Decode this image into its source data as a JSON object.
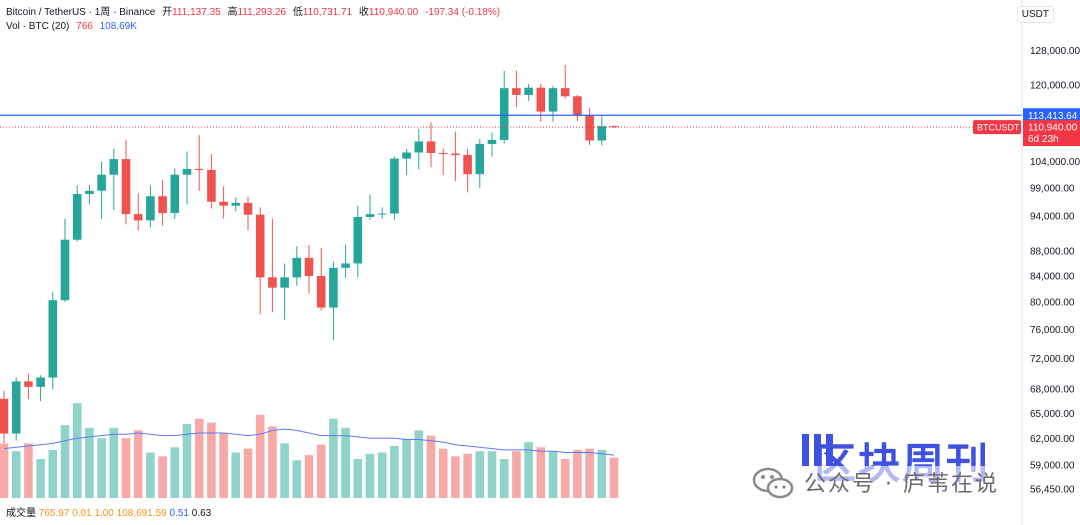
{
  "header": {
    "symbol": "Bitcoin / TetherUS · 1周 · Binance",
    "open_label": "开",
    "open": "111,137.35",
    "high_label": "高",
    "high": "111,293.26",
    "low_label": "低",
    "low": "110,731.71",
    "close_label": "收",
    "close": "110,940.00",
    "change": "-197.34 (-0.18%)",
    "vol_label": "Vol · BTC (20)",
    "vol_value": "766",
    "vol_ma": "108.69K"
  },
  "currency": "USDT",
  "bottom": {
    "label": "成交量",
    "v1": "765.97",
    "v2": "0.01",
    "v3": "1.00",
    "v4": "108,691.59",
    "v5": "0.51",
    "v6": "0.63"
  },
  "watermark": {
    "title": "区块周刊",
    "subtitle": "公众号 · 庐苇在说"
  },
  "colors": {
    "up": "#26a69a",
    "down": "#ef5350",
    "up_vol": "#8fd3cb",
    "down_vol": "#f7a9a7",
    "price_line": "#2962ff",
    "last_label": "#f23645",
    "ma": "#5b7cfa"
  },
  "chart_data": {
    "type": "candlestick",
    "scale": "log",
    "ylim": [
      55500,
      136000
    ],
    "y_ticks": [
      {
        "v": 128000,
        "label": "128,000.00"
      },
      {
        "v": 120000,
        "label": "120,000.00"
      },
      {
        "v": 104000,
        "label": "104,000.00"
      },
      {
        "v": 99000,
        "label": "99,000.00"
      },
      {
        "v": 94000,
        "label": "94,000.00"
      },
      {
        "v": 88000,
        "label": "88,000.00"
      },
      {
        "v": 84000,
        "label": "84,000.00"
      },
      {
        "v": 80000,
        "label": "80,000.00"
      },
      {
        "v": 76000,
        "label": "76,000.00"
      },
      {
        "v": 72000,
        "label": "72,000.00"
      },
      {
        "v": 68000,
        "label": "68,000.00"
      },
      {
        "v": 65000,
        "label": "65,000.00"
      },
      {
        "v": 62000,
        "label": "62,000.00"
      },
      {
        "v": 59000,
        "label": "59,000.00"
      },
      {
        "v": 56450,
        "label": "56,450.00"
      }
    ],
    "price_line": {
      "v": 113413.64,
      "label": "113,413.64"
    },
    "last_price": {
      "v": 110940,
      "label": "110,940.00",
      "ticker": "BTCUSDT",
      "countdown": "6d 23h"
    },
    "candles": [
      {
        "o": 66800,
        "h": 67800,
        "l": 61500,
        "c": 62600
      },
      {
        "o": 62600,
        "h": 69500,
        "l": 61800,
        "c": 69000
      },
      {
        "o": 69000,
        "h": 70000,
        "l": 66800,
        "c": 68300
      },
      {
        "o": 68300,
        "h": 69800,
        "l": 66500,
        "c": 69500
      },
      {
        "o": 69500,
        "h": 81500,
        "l": 68000,
        "c": 80300
      },
      {
        "o": 80300,
        "h": 93500,
        "l": 80000,
        "c": 89900
      },
      {
        "o": 89900,
        "h": 99500,
        "l": 89600,
        "c": 97900
      },
      {
        "o": 97900,
        "h": 99600,
        "l": 96000,
        "c": 98500
      },
      {
        "o": 98500,
        "h": 104000,
        "l": 93500,
        "c": 101500
      },
      {
        "o": 101500,
        "h": 106500,
        "l": 95000,
        "c": 104500
      },
      {
        "o": 104500,
        "h": 108300,
        "l": 92500,
        "c": 94300
      },
      {
        "o": 94300,
        "h": 98000,
        "l": 91500,
        "c": 93200
      },
      {
        "o": 93200,
        "h": 99500,
        "l": 92000,
        "c": 97500
      },
      {
        "o": 97500,
        "h": 100500,
        "l": 92300,
        "c": 94500
      },
      {
        "o": 94500,
        "h": 102700,
        "l": 93500,
        "c": 101500
      },
      {
        "o": 101500,
        "h": 106000,
        "l": 96000,
        "c": 102600
      },
      {
        "o": 102600,
        "h": 109300,
        "l": 98500,
        "c": 102400
      },
      {
        "o": 102400,
        "h": 105500,
        "l": 95300,
        "c": 96500
      },
      {
        "o": 96500,
        "h": 99300,
        "l": 93500,
        "c": 95800
      },
      {
        "o": 95800,
        "h": 97300,
        "l": 94800,
        "c": 96300
      },
      {
        "o": 96300,
        "h": 97400,
        "l": 91500,
        "c": 94200
      },
      {
        "o": 94200,
        "h": 95500,
        "l": 78200,
        "c": 83800
      },
      {
        "o": 83800,
        "h": 93500,
        "l": 78500,
        "c": 82200
      },
      {
        "o": 82200,
        "h": 86000,
        "l": 77400,
        "c": 83800
      },
      {
        "o": 83800,
        "h": 88800,
        "l": 82500,
        "c": 86900
      },
      {
        "o": 86900,
        "h": 89000,
        "l": 81300,
        "c": 84000
      },
      {
        "o": 84000,
        "h": 88500,
        "l": 78800,
        "c": 79200
      },
      {
        "o": 79200,
        "h": 86300,
        "l": 74500,
        "c": 85300
      },
      {
        "o": 85300,
        "h": 89100,
        "l": 83700,
        "c": 86000
      },
      {
        "o": 86000,
        "h": 95800,
        "l": 83800,
        "c": 93800
      },
      {
        "o": 93800,
        "h": 97800,
        "l": 93300,
        "c": 94300
      },
      {
        "o": 94300,
        "h": 95500,
        "l": 93500,
        "c": 94400
      },
      {
        "o": 94400,
        "h": 105000,
        "l": 93300,
        "c": 104600
      },
      {
        "o": 104600,
        "h": 106500,
        "l": 101500,
        "c": 105800
      },
      {
        "o": 105800,
        "h": 110500,
        "l": 102500,
        "c": 108000
      },
      {
        "o": 108000,
        "h": 111900,
        "l": 103000,
        "c": 105700
      },
      {
        "o": 105700,
        "h": 106600,
        "l": 101500,
        "c": 105600
      },
      {
        "o": 105600,
        "h": 110000,
        "l": 100300,
        "c": 105300
      },
      {
        "o": 105300,
        "h": 106500,
        "l": 98200,
        "c": 101600
      },
      {
        "o": 101600,
        "h": 108500,
        "l": 99000,
        "c": 107500
      },
      {
        "o": 107500,
        "h": 109800,
        "l": 105000,
        "c": 108300
      },
      {
        "o": 108300,
        "h": 123200,
        "l": 107600,
        "c": 119300
      },
      {
        "o": 119300,
        "h": 123300,
        "l": 115200,
        "c": 117800
      },
      {
        "o": 117800,
        "h": 120200,
        "l": 116500,
        "c": 119400
      },
      {
        "o": 119400,
        "h": 120300,
        "l": 112000,
        "c": 114200
      },
      {
        "o": 114200,
        "h": 119800,
        "l": 112100,
        "c": 119300
      },
      {
        "o": 119300,
        "h": 124500,
        "l": 117000,
        "c": 117500
      },
      {
        "o": 117500,
        "h": 117800,
        "l": 112200,
        "c": 113400
      },
      {
        "o": 113400,
        "h": 115000,
        "l": 107300,
        "c": 108200
      },
      {
        "o": 108200,
        "h": 113400,
        "l": 107200,
        "c": 111137
      },
      {
        "o": 111137,
        "h": 111293,
        "l": 110732,
        "c": 110940
      }
    ],
    "volume": [
      0.42,
      0.36,
      0.42,
      0.3,
      0.37,
      0.56,
      0.73,
      0.54,
      0.46,
      0.54,
      0.46,
      0.52,
      0.35,
      0.32,
      0.39,
      0.57,
      0.61,
      0.58,
      0.5,
      0.35,
      0.38,
      0.64,
      0.55,
      0.42,
      0.29,
      0.33,
      0.41,
      0.61,
      0.54,
      0.3,
      0.34,
      0.35,
      0.4,
      0.45,
      0.52,
      0.48,
      0.38,
      0.32,
      0.34,
      0.36,
      0.36,
      0.3,
      0.36,
      0.43,
      0.39,
      0.36,
      0.3,
      0.37,
      0.38,
      0.37,
      0.31
    ],
    "volume_ma": [
      0.38,
      0.39,
      0.4,
      0.41,
      0.42,
      0.44,
      0.46,
      0.47,
      0.48,
      0.49,
      0.49,
      0.5,
      0.49,
      0.48,
      0.48,
      0.49,
      0.5,
      0.5,
      0.5,
      0.49,
      0.48,
      0.49,
      0.52,
      0.53,
      0.52,
      0.5,
      0.48,
      0.48,
      0.48,
      0.47,
      0.46,
      0.46,
      0.46,
      0.45,
      0.45,
      0.44,
      0.43,
      0.41,
      0.4,
      0.39,
      0.38,
      0.37,
      0.37,
      0.37,
      0.36,
      0.36,
      0.35,
      0.35,
      0.35,
      0.34,
      0.33
    ]
  }
}
